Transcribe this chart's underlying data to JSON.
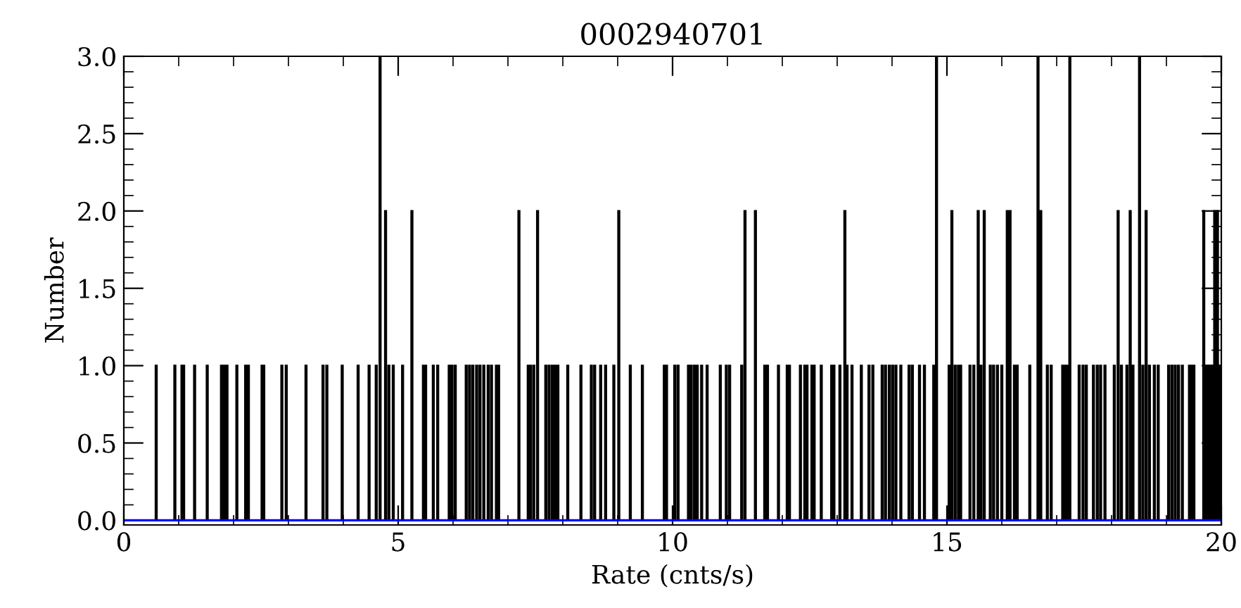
{
  "chart_data": {
    "type": "histogram",
    "title": "0002940701",
    "xlabel": "Rate (cnts/s)",
    "ylabel": "Number",
    "color": "#000000",
    "bins": [
      0,
      0.58,
      0.6,
      0.92,
      0.94,
      1.05,
      1.07,
      1.08,
      1.1,
      1.28,
      1.3,
      1.51,
      1.53,
      1.77,
      1.79,
      1.82,
      1.84,
      1.87,
      1.89,
      2.05,
      2.07,
      2.21,
      2.23,
      2.26,
      2.28,
      2.51,
      2.53,
      2.54,
      2.56,
      2.87,
      2.89,
      2.95,
      2.97,
      3.31,
      3.33,
      3.62,
      3.64,
      3.69,
      3.71,
      3.97,
      3.99,
      4.26,
      4.28,
      4.46,
      4.48,
      4.59,
      4.61,
      4.66,
      4.68,
      4.76,
      4.78,
      4.82,
      4.84,
      4.9,
      4.92,
      5.07,
      5.09,
      5.24,
      5.26,
      5.45,
      5.47,
      5.49,
      5.51,
      5.63,
      5.65,
      5.71,
      5.73,
      5.92,
      5.94,
      5.97,
      5.99,
      6.03,
      6.05,
      6.23,
      6.25,
      6.29,
      6.31,
      6.35,
      6.37,
      6.42,
      6.44,
      6.48,
      6.5,
      6.55,
      6.57,
      6.63,
      6.65,
      6.69,
      6.71,
      6.78,
      6.8,
      6.82,
      6.84,
      7.19,
      7.21,
      7.36,
      7.38,
      7.4,
      7.42,
      7.46,
      7.48,
      7.53,
      7.55,
      7.68,
      7.7,
      7.74,
      7.76,
      7.8,
      7.82,
      7.85,
      7.87,
      7.9,
      7.92,
      8.08,
      8.1,
      8.32,
      8.34,
      8.51,
      8.53,
      8.57,
      8.59,
      8.68,
      8.7,
      8.77,
      8.79,
      8.92,
      8.94,
      9.01,
      9.03,
      9.22,
      9.24,
      9.44,
      9.46,
      9.84,
      9.86,
      9.88,
      9.9,
      10.03,
      10.05,
      10.09,
      10.11,
      10.28,
      10.3,
      10.33,
      10.35,
      10.39,
      10.41,
      10.44,
      10.46,
      10.52,
      10.54,
      10.62,
      10.64,
      10.86,
      10.88,
      10.97,
      10.99,
      11.03,
      11.05,
      11.25,
      11.27,
      11.31,
      11.33,
      11.5,
      11.52,
      11.67,
      11.69,
      11.72,
      11.74,
      11.92,
      11.94,
      12.08,
      12.1,
      12.12,
      12.14,
      12.32,
      12.34,
      12.4,
      12.42,
      12.44,
      12.46,
      12.53,
      12.55,
      12.57,
      12.59,
      12.7,
      12.72,
      12.89,
      12.91,
      12.93,
      12.95,
      13.04,
      13.06,
      13.13,
      13.15,
      13.17,
      13.19,
      13.26,
      13.28,
      13.43,
      13.45,
      13.57,
      13.59,
      13.64,
      13.66,
      13.81,
      13.83,
      13.87,
      13.89,
      13.94,
      13.96,
      14.0,
      14.02,
      14.06,
      14.08,
      14.15,
      14.17,
      14.3,
      14.32,
      14.36,
      14.38,
      14.49,
      14.51,
      14.58,
      14.6,
      14.75,
      14.77,
      14.8,
      14.82,
      15.03,
      15.05,
      15.08,
      15.1,
      15.14,
      15.16,
      15.2,
      15.22,
      15.24,
      15.26,
      15.41,
      15.43,
      15.48,
      15.5,
      15.56,
      15.58,
      15.61,
      15.63,
      15.67,
      15.69,
      15.78,
      15.8,
      15.84,
      15.86,
      15.91,
      15.93,
      15.99,
      16.01,
      16.09,
      16.11,
      16.14,
      16.16,
      16.22,
      16.24,
      16.27,
      16.29,
      16.5,
      16.52,
      16.65,
      16.67,
      16.7,
      16.72,
      16.82,
      16.84,
      16.89,
      16.91,
      17.1,
      17.12,
      17.15,
      17.17,
      17.19,
      17.21,
      17.23,
      17.25,
      17.4,
      17.42,
      17.47,
      17.49,
      17.53,
      17.55,
      17.66,
      17.68,
      17.73,
      17.75,
      17.79,
      17.81,
      17.87,
      17.89,
      18.04,
      18.06,
      18.11,
      18.13,
      18.17,
      18.19,
      18.27,
      18.29,
      18.33,
      18.35,
      18.38,
      18.4,
      18.5,
      18.52,
      18.56,
      18.58,
      18.62,
      18.64,
      18.68,
      18.7,
      18.77,
      18.79,
      18.84,
      18.86,
      19.03,
      19.05,
      19.09,
      19.11,
      19.15,
      19.17,
      19.21,
      19.23,
      19.28,
      19.3,
      19.41,
      19.43,
      19.45,
      19.47,
      19.49,
      19.51,
      19.67,
      19.69,
      19.72,
      19.74,
      19.77,
      19.79,
      19.82,
      19.84,
      19.87,
      19.89,
      19.92,
      19.94,
      19.97,
      19.99,
      20
    ],
    "values": [
      0,
      1,
      0,
      1,
      0,
      1,
      0,
      1,
      0,
      1,
      0,
      1,
      0,
      1,
      0,
      1,
      0,
      1,
      0,
      1,
      0,
      1,
      0,
      1,
      0,
      1,
      0,
      1,
      0,
      1,
      0,
      1,
      0,
      1,
      0,
      1,
      0,
      1,
      0,
      1,
      0,
      1,
      0,
      1,
      0,
      1,
      0,
      3,
      0,
      2,
      0,
      1,
      0,
      1,
      0,
      1,
      0,
      2,
      0,
      1,
      0,
      1,
      0,
      1,
      0,
      1,
      0,
      1,
      0,
      1,
      0,
      1,
      0,
      1,
      0,
      1,
      0,
      1,
      0,
      1,
      0,
      1,
      0,
      1,
      0,
      1,
      0,
      1,
      0,
      1,
      0,
      1,
      0,
      2,
      0,
      1,
      0,
      1,
      0,
      1,
      0,
      2,
      0,
      1,
      0,
      1,
      0,
      1,
      0,
      1,
      0,
      1,
      0,
      1,
      0,
      1,
      0,
      1,
      0,
      1,
      0,
      1,
      0,
      1,
      0,
      1,
      0,
      2,
      0,
      1,
      0,
      1,
      0,
      1,
      0,
      1,
      0,
      1,
      0,
      1,
      0,
      1,
      0,
      1,
      0,
      1,
      0,
      1,
      0,
      1,
      0,
      1,
      0,
      1,
      0,
      1,
      0,
      1,
      0,
      1,
      0,
      2,
      0,
      2,
      0,
      1,
      0,
      1,
      0,
      1,
      0,
      1,
      0,
      1,
      0,
      1,
      0,
      1,
      0,
      1,
      0,
      1,
      0,
      1,
      0,
      1,
      0,
      1,
      0,
      1,
      0,
      1,
      0,
      2,
      0,
      1,
      0,
      1,
      0,
      1,
      0,
      1,
      0,
      1,
      0,
      1,
      0,
      1,
      0,
      1,
      0,
      1,
      0,
      1,
      0,
      1,
      0,
      1,
      0,
      1,
      0,
      1,
      0,
      1,
      0,
      1,
      0,
      3,
      0,
      1,
      0,
      2,
      0,
      1,
      0,
      1,
      0,
      1,
      0,
      1,
      0,
      1,
      0,
      2,
      0,
      1,
      0,
      2,
      0,
      1,
      0,
      1,
      0,
      1,
      0,
      1,
      0,
      2,
      0,
      2,
      0,
      1,
      0,
      1,
      0,
      1,
      0,
      3,
      0,
      2,
      0,
      1,
      0,
      1,
      0,
      1,
      0,
      1,
      0,
      1,
      0,
      3,
      0,
      1,
      0,
      1,
      0,
      1,
      0,
      1,
      0,
      1,
      0,
      1,
      0,
      1,
      0,
      1,
      0,
      2,
      0,
      1,
      0,
      1,
      0,
      2,
      0,
      1,
      0,
      3,
      0,
      1,
      0,
      2,
      0,
      1,
      0,
      1,
      0,
      1,
      0,
      1,
      0,
      1,
      0,
      1,
      0,
      1,
      0,
      1,
      0,
      1,
      0,
      1,
      0,
      1,
      0,
      2,
      0,
      1,
      0,
      1,
      0,
      1,
      0,
      2,
      0,
      2,
      0,
      1,
      0
    ],
    "xlim": [
      0,
      20
    ],
    "xticks": [
      0,
      5,
      10,
      15,
      20
    ],
    "ylim": [
      -0.03,
      3.0
    ],
    "yticks": [
      {
        "value": 0,
        "label": "0.0"
      },
      {
        "value": 0.5,
        "label": "0.5"
      },
      {
        "value": 1,
        "label": "1.0"
      },
      {
        "value": 1.5,
        "label": "1.5"
      },
      {
        "value": 2,
        "label": "2.0"
      },
      {
        "value": 2.5,
        "label": "2.5"
      },
      {
        "value": 3,
        "label": "3.0"
      }
    ],
    "ref_lines": [
      {
        "axis": "y",
        "value": 0,
        "color": "#0000ff"
      }
    ],
    "grid": false,
    "legend": false
  }
}
